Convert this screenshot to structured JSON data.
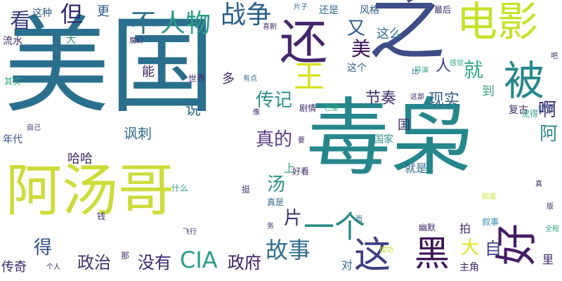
{
  "words": [
    {
      "text": "美国",
      "color": "#2b6f8e",
      "size": 150
    },
    {
      "text": "毒枭",
      "color": "#25878c",
      "size": 120
    },
    {
      "text": "阿汤哥",
      "color": "#cddc38",
      "size": 80
    },
    {
      "text": "之",
      "color": "#3d4d88",
      "size": 110
    },
    {
      "text": "电影",
      "color": "#c5e226",
      "size": 58
    },
    {
      "text": "还",
      "color": "#462670",
      "size": 68
    },
    {
      "text": "被",
      "color": "#25878c",
      "size": 58
    },
    {
      "text": "好",
      "color": "#461b66",
      "size": 60
    },
    {
      "text": "黑",
      "color": "#3d1256",
      "size": 50
    },
    {
      "text": "这",
      "color": "#3d3e86",
      "size": 52
    },
    {
      "text": "一个",
      "color": "#2e8c88",
      "size": 44
    },
    {
      "text": "王",
      "color": "#d7e01c",
      "size": 44
    },
    {
      "text": "战争",
      "color": "#2a5e8c",
      "size": 36
    },
    {
      "text": "不",
      "color": "#2c728e",
      "size": 36
    },
    {
      "text": "人物",
      "color": "#2a9f85",
      "size": 36
    },
    {
      "text": "但",
      "color": "#332b75",
      "size": 32
    },
    {
      "text": "看",
      "color": "#383a7e",
      "size": 30
    },
    {
      "text": "故事",
      "color": "#2e6c8e",
      "size": 32
    },
    {
      "text": "CIA",
      "color": "#2a9e89",
      "size": 32
    },
    {
      "text": "政府",
      "color": "#3b1d63",
      "size": 24
    },
    {
      "text": "没有",
      "color": "#3a2770",
      "size": 24
    },
    {
      "text": "政治",
      "color": "#423372",
      "size": 24
    },
    {
      "text": "传奇",
      "color": "#3a2770",
      "size": 18
    },
    {
      "text": "得",
      "color": "#2f4f88",
      "size": 26
    },
    {
      "text": "片",
      "color": "#3f2e70",
      "size": 26
    },
    {
      "text": "汤",
      "color": "#2a8e89",
      "size": 26
    },
    {
      "text": "自",
      "color": "#3e4587",
      "size": 24
    },
    {
      "text": "大",
      "color": "#dde41a",
      "size": 26
    },
    {
      "text": "啊",
      "color": "#3e2e72",
      "size": 26
    },
    {
      "text": "阿",
      "color": "#2a8688",
      "size": 26
    },
    {
      "text": "美",
      "color": "#3a0f58",
      "size": 28
    },
    {
      "text": "就",
      "color": "#30a685",
      "size": 28
    },
    {
      "text": "又",
      "color": "#2a5c8c",
      "size": 26
    },
    {
      "text": "人",
      "color": "#3c4486",
      "size": 22
    },
    {
      "text": "到",
      "color": "#3ba180",
      "size": 18
    },
    {
      "text": "现实",
      "color": "#2f5e8c",
      "size": 22
    },
    {
      "text": "节奏",
      "color": "#3e2f6f",
      "size": 22
    },
    {
      "text": "传记",
      "color": "#2e8f8b",
      "size": 26
    },
    {
      "text": "真的",
      "color": "#5a3a86",
      "size": 26
    },
    {
      "text": "能",
      "color": "#3a1f65",
      "size": 18
    },
    {
      "text": "说",
      "color": "#2e6c8e",
      "size": 22
    },
    {
      "text": "讽刺",
      "color": "#2e6c8e",
      "size": 20
    },
    {
      "text": "哈哈",
      "color": "#3d2a6a",
      "size": 18
    },
    {
      "text": "年代",
      "color": "#2f4f88",
      "size": 14
    },
    {
      "text": "更",
      "color": "#2a5c8c",
      "size": 18
    },
    {
      "text": "这种",
      "color": "#2a5c8c",
      "size": 14
    },
    {
      "text": "风格",
      "color": "#2a5c8c",
      "size": 14
    },
    {
      "text": "还是",
      "color": "#2e6c8e",
      "size": 14
    },
    {
      "text": "片子",
      "color": "#2e6c8e",
      "size": 10
    },
    {
      "text": "最后",
      "color": "#3d2a6a",
      "size": 12
    },
    {
      "text": "这么",
      "color": "#2e6c8e",
      "size": 18
    },
    {
      "text": "这个",
      "color": "#2f5e8c",
      "size": 14
    },
    {
      "text": "国家",
      "color": "#2e8f8b",
      "size": 14
    },
    {
      "text": "就是",
      "color": "#2e6c8e",
      "size": 16
    },
    {
      "text": "上",
      "color": "#30a685",
      "size": 16
    },
    {
      "text": "好看",
      "color": "#3d2a6a",
      "size": 12
    },
    {
      "text": "复古",
      "color": "#3d2a6a",
      "size": 14
    },
    {
      "text": "觉得",
      "color": "#30a685",
      "size": 12
    },
    {
      "text": "结局",
      "color": "#2f4f88",
      "size": 12
    },
    {
      "text": "里",
      "color": "#3d2a6a",
      "size": 16
    },
    {
      "text": "主角",
      "color": "#3d2a6a",
      "size": 14
    },
    {
      "text": "拍",
      "color": "#3d2a6a",
      "size": 16
    },
    {
      "text": "对",
      "color": "#2e6c8e",
      "size": 16
    },
    {
      "text": "什么",
      "color": "#30a685",
      "size": 12
    },
    {
      "text": "挺",
      "color": "#3d2a6a",
      "size": 12
    },
    {
      "text": "真是",
      "color": "#2e6c8e",
      "size": 12
    },
    {
      "text": "钱",
      "color": "#3d2a6a",
      "size": 12
    },
    {
      "text": "飞行",
      "color": "#3d2a6a",
      "size": 10
    },
    {
      "text": "那",
      "color": "#3d2a6a",
      "size": 12
    },
    {
      "text": "个人",
      "color": "#3d2a6a",
      "size": 10
    },
    {
      "text": "幽默",
      "color": "#3d2a6a",
      "size": 12
    },
    {
      "text": "叙事",
      "color": "#3a8cbb",
      "size": 12
    },
    {
      "text": "版",
      "color": "#3d2a6a",
      "size": 10
    },
    {
      "text": "流水",
      "color": "#3d2a6a",
      "size": 14
    },
    {
      "text": "喜剧",
      "color": "#3d2a6a",
      "size": 10
    },
    {
      "text": "魔幻",
      "color": "#3d2a6a",
      "size": 10
    },
    {
      "text": "有点",
      "color": "#2e6c8e",
      "size": 10
    },
    {
      "text": "世界",
      "color": "#3d2a6a",
      "size": 12
    },
    {
      "text": "剧情",
      "color": "#3d2a6a",
      "size": 12
    },
    {
      "text": "巴里",
      "color": "#30a685",
      "size": 10
    },
    {
      "text": "知道",
      "color": "#c5e226",
      "size": 10
    },
    {
      "text": "感觉",
      "color": "#30a685",
      "size": 10
    },
    {
      "text": "导演",
      "color": "#30a685",
      "size": 10
    },
    {
      "text": "要",
      "color": "#3d2a6a",
      "size": 10
    },
    {
      "text": "像",
      "color": "#3d2a6a",
      "size": 10
    },
    {
      "text": "多",
      "color": "#3d2a6a",
      "size": 18
    },
    {
      "text": "国",
      "color": "#3d2a6a",
      "size": 18
    },
    {
      "text": "其实",
      "color": "#30a685",
      "size": 12
    },
    {
      "text": "自己",
      "color": "#3d2a6a",
      "size": 10
    },
    {
      "text": "务",
      "color": "#3d2a6a",
      "size": 10
    },
    {
      "text": "吧",
      "color": "#3d2a6a",
      "size": 10
    },
    {
      "text": "而",
      "color": "#2e6c8e",
      "size": 10
    },
    {
      "text": "比",
      "color": "#2e6c8e",
      "size": 10
    },
    {
      "text": "大",
      "color": "#2e8f8b",
      "size": 14
    },
    {
      "text": "全程",
      "color": "#30a685",
      "size": 10
    },
    {
      "text": "成功",
      "color": "#c5e226",
      "size": 10
    },
    {
      "text": "这部",
      "color": "#3d2a6a",
      "size": 10
    },
    {
      "text": "真",
      "color": "#3d2a6a",
      "size": 10
    }
  ]
}
